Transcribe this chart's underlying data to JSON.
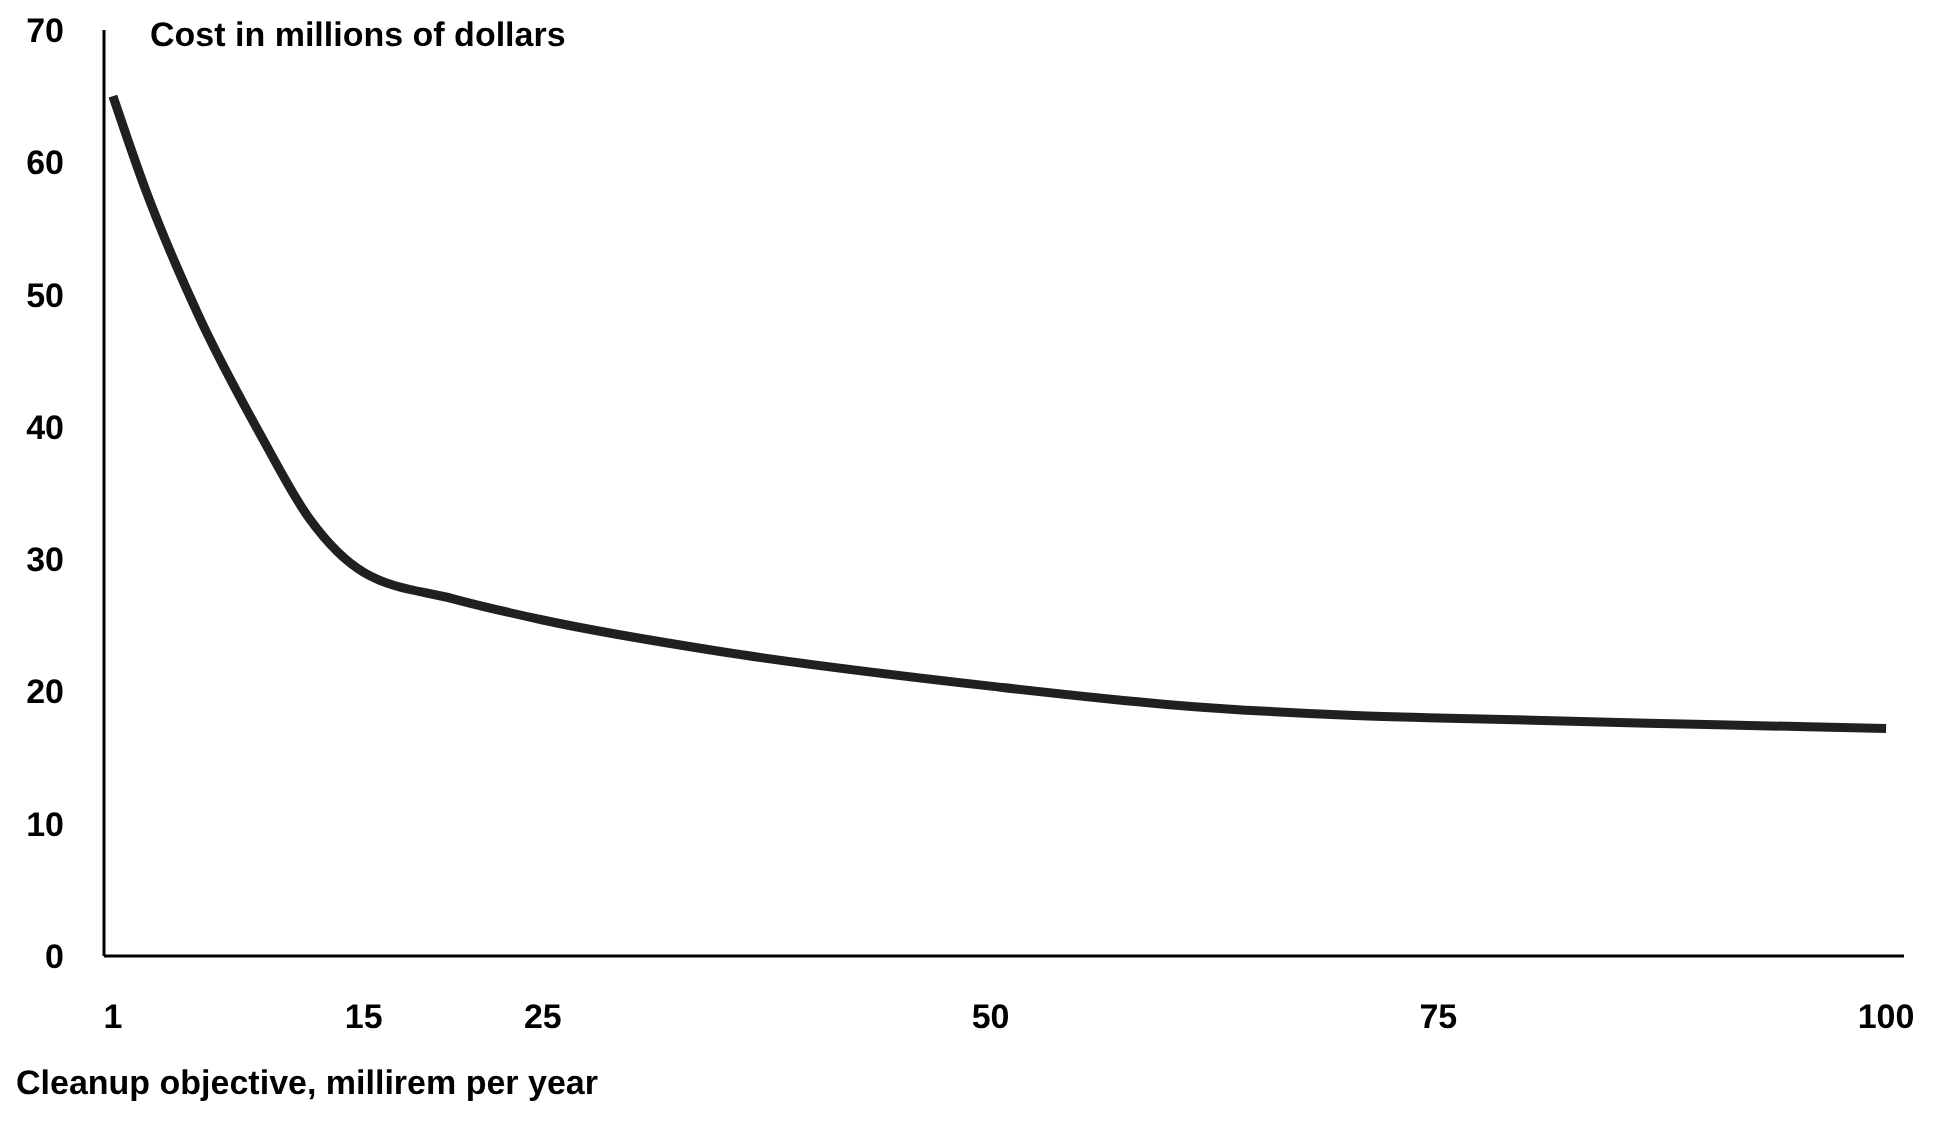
{
  "chart_data": {
    "type": "line",
    "ylabel": "Cost in millions of dollars",
    "xlabel": "Cleanup objective, millirem per year",
    "x": [
      1,
      2.8,
      5.75,
      9.4,
      12,
      15,
      20,
      25,
      35,
      50,
      60,
      70,
      75,
      90,
      100
    ],
    "series": [
      {
        "color": "#231f20",
        "values": [
          65,
          58,
          48.5,
          39,
          33,
          29,
          27,
          25.4,
          23,
          20.4,
          19,
          18.2,
          18,
          17.5,
          17.2
        ]
      }
    ],
    "xlim": [
      0.5,
      101
    ],
    "xticks": [
      1,
      15,
      25,
      50,
      75,
      100
    ],
    "ylim": [
      0,
      70
    ],
    "yticks": [
      0,
      10,
      20,
      30,
      40,
      50,
      60,
      70
    ],
    "grid": false,
    "legend": false,
    "marker": "none",
    "line_style": "solid"
  }
}
